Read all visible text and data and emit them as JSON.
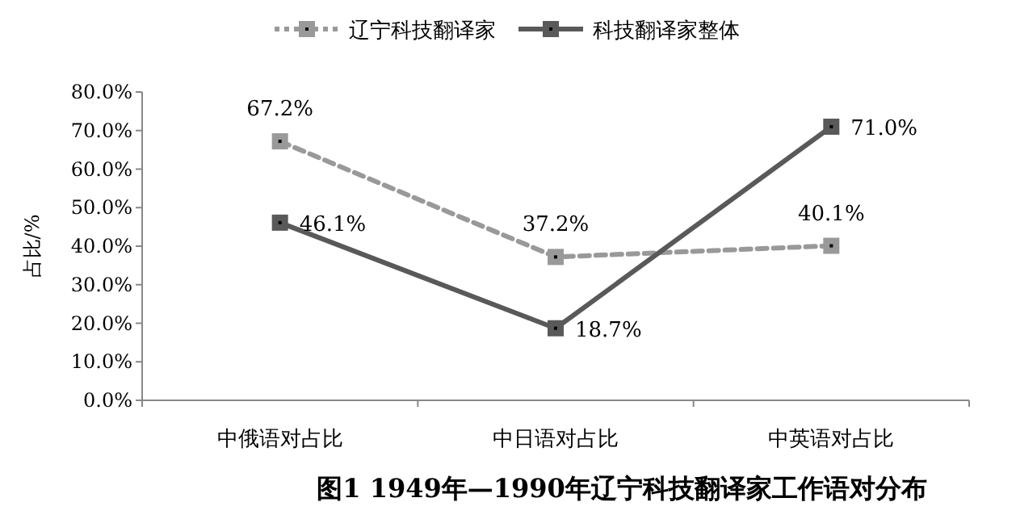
{
  "chart_data": {
    "type": "line",
    "title": "图1 1949年—1990年辽宁科技翻译家工作语对分布",
    "ylabel": "占比/%",
    "categories": [
      "中俄语对占比",
      "中日语对占比",
      "中英语对占比"
    ],
    "series": [
      {
        "name": "辽宁科技翻译家",
        "color": "#999999",
        "line_style": "dashed",
        "values": [
          67.2,
          37.2,
          40.1
        ],
        "value_labels": [
          "67.2%",
          "37.2%",
          "40.1%"
        ]
      },
      {
        "name": "科技翻译家整体",
        "color": "#595959",
        "line_style": "solid",
        "values": [
          46.1,
          18.7,
          71.0
        ],
        "value_labels": [
          "46.1%",
          "18.7%",
          "71.0%"
        ]
      }
    ],
    "ylim": [
      0,
      80
    ],
    "yticks": [
      {
        "value": 0,
        "label": "0.0%"
      },
      {
        "value": 10,
        "label": "10.0%"
      },
      {
        "value": 20,
        "label": "20.0%"
      },
      {
        "value": 30,
        "label": "30.0%"
      },
      {
        "value": 40,
        "label": "40.0%"
      },
      {
        "value": 50,
        "label": "50.0%"
      },
      {
        "value": 60,
        "label": "60.0%"
      },
      {
        "value": 70,
        "label": "70.0%"
      },
      {
        "value": 80,
        "label": "80.0%"
      }
    ],
    "marker": "square",
    "legend": "top",
    "grid": false
  }
}
